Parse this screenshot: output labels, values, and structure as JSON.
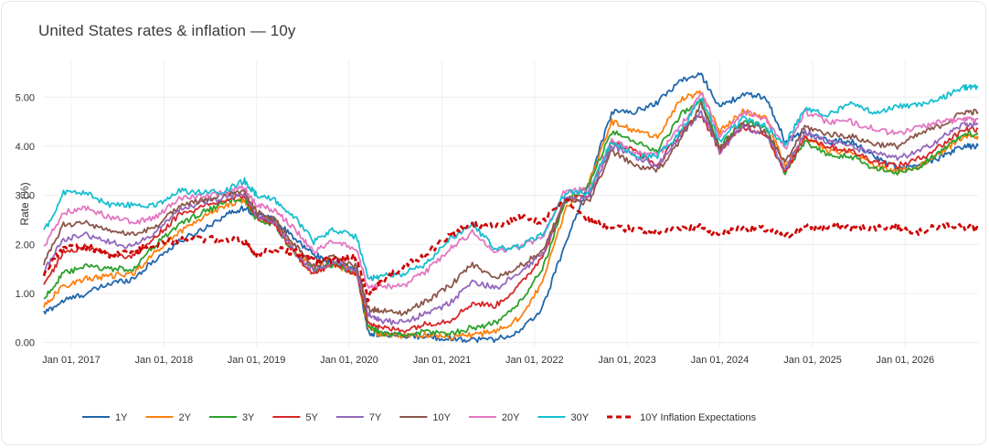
{
  "page": {
    "title": "United States rates & inflation — 10y"
  },
  "chart_data": {
    "type": "line",
    "title": "United States rates & inflation — 10y",
    "xlabel": "",
    "ylabel": "Rate (%)",
    "ylim": [
      -0.1,
      5.75
    ],
    "yticks": [
      "0.00",
      "1.00",
      "2.00",
      "3.00",
      "4.00",
      "5.00"
    ],
    "xlim": [
      "2016-09-15",
      "2026-10-15"
    ],
    "xticks": [
      "Jan 01, 2017",
      "Jan 01, 2018",
      "Jan 01, 2019",
      "Jan 01, 2020",
      "Jan 01, 2021",
      "Jan 01, 2022",
      "Jan 01, 2023",
      "Jan 01, 2024",
      "Jan 01, 2025",
      "Jan 01, 2026"
    ],
    "grid": true,
    "legend_position": "bottom",
    "dates": [
      "2016-09-15",
      "2016-12-01",
      "2017-03-01",
      "2017-06-01",
      "2017-09-01",
      "2017-12-01",
      "2018-03-01",
      "2018-06-01",
      "2018-09-01",
      "2018-11-15",
      "2019-01-01",
      "2019-03-15",
      "2019-06-01",
      "2019-08-15",
      "2019-11-01",
      "2020-02-01",
      "2020-03-15",
      "2020-05-01",
      "2020-08-01",
      "2020-11-01",
      "2021-02-01",
      "2021-05-01",
      "2021-08-01",
      "2021-11-01",
      "2022-02-01",
      "2022-05-01",
      "2022-08-01",
      "2022-11-01",
      "2023-02-01",
      "2023-05-01",
      "2023-08-01",
      "2023-10-20",
      "2024-01-01",
      "2024-04-01",
      "2024-07-01",
      "2024-09-15",
      "2024-12-01",
      "2025-03-01",
      "2025-06-01",
      "2025-09-01",
      "2025-12-01",
      "2026-03-01",
      "2026-06-01",
      "2026-08-20",
      "2026-10-15"
    ],
    "series": [
      {
        "name": "1Y",
        "color": "#2166ac",
        "values": [
          0.6,
          0.85,
          1.0,
          1.2,
          1.3,
          1.7,
          2.05,
          2.3,
          2.6,
          2.75,
          2.6,
          2.5,
          2.1,
          1.8,
          1.6,
          1.5,
          0.2,
          0.17,
          0.13,
          0.12,
          0.08,
          0.06,
          0.07,
          0.2,
          0.7,
          2.0,
          3.2,
          4.7,
          4.7,
          4.9,
          5.35,
          5.45,
          4.8,
          5.05,
          5.0,
          4.1,
          4.3,
          4.1,
          4.1,
          3.8,
          3.55,
          3.6,
          3.8,
          4.0,
          4.0
        ]
      },
      {
        "name": "2Y",
        "color": "#ff7f0e",
        "values": [
          0.75,
          1.15,
          1.3,
          1.35,
          1.4,
          1.85,
          2.25,
          2.55,
          2.8,
          2.9,
          2.55,
          2.45,
          1.85,
          1.55,
          1.6,
          1.4,
          0.3,
          0.18,
          0.14,
          0.16,
          0.12,
          0.16,
          0.21,
          0.5,
          1.2,
          2.7,
          3.25,
          4.5,
          4.3,
          4.2,
          4.95,
          5.1,
          4.3,
          4.7,
          4.6,
          3.6,
          4.2,
          3.9,
          3.9,
          3.6,
          3.5,
          3.6,
          3.9,
          4.2,
          4.2
        ]
      },
      {
        "name": "3Y",
        "color": "#2ca02c",
        "values": [
          0.9,
          1.4,
          1.55,
          1.5,
          1.5,
          2.0,
          2.4,
          2.65,
          2.85,
          2.95,
          2.5,
          2.4,
          1.8,
          1.45,
          1.6,
          1.4,
          0.35,
          0.2,
          0.15,
          0.22,
          0.18,
          0.3,
          0.4,
          0.8,
          1.5,
          2.85,
          3.2,
          4.3,
          4.1,
          3.9,
          4.65,
          4.9,
          4.0,
          4.5,
          4.4,
          3.45,
          4.1,
          3.8,
          3.8,
          3.55,
          3.45,
          3.6,
          3.95,
          4.25,
          4.25
        ]
      },
      {
        "name": "5Y",
        "color": "#d62728",
        "values": [
          1.15,
          1.85,
          1.95,
          1.8,
          1.75,
          2.15,
          2.6,
          2.75,
          2.9,
          3.0,
          2.55,
          2.4,
          1.8,
          1.4,
          1.6,
          1.4,
          0.45,
          0.3,
          0.25,
          0.38,
          0.45,
          0.8,
          0.75,
          1.15,
          1.75,
          2.9,
          3.0,
          4.1,
          3.9,
          3.6,
          4.3,
          4.65,
          3.9,
          4.4,
          4.25,
          3.45,
          4.2,
          4.0,
          3.9,
          3.7,
          3.6,
          3.75,
          4.05,
          4.35,
          4.35
        ]
      },
      {
        "name": "7Y",
        "color": "#9467bd",
        "values": [
          1.45,
          2.1,
          2.2,
          2.05,
          1.95,
          2.25,
          2.7,
          2.85,
          2.95,
          3.05,
          2.6,
          2.45,
          1.85,
          1.45,
          1.65,
          1.45,
          0.6,
          0.45,
          0.4,
          0.6,
          0.8,
          1.25,
          1.1,
          1.4,
          1.8,
          2.9,
          2.95,
          4.0,
          3.8,
          3.6,
          4.25,
          4.7,
          3.9,
          4.4,
          4.25,
          3.5,
          4.3,
          4.1,
          4.0,
          3.85,
          3.75,
          3.9,
          4.2,
          4.45,
          4.45
        ]
      },
      {
        "name": "10Y",
        "color": "#8c564b",
        "values": [
          1.6,
          2.4,
          2.45,
          2.25,
          2.2,
          2.35,
          2.8,
          2.9,
          3.0,
          3.1,
          2.65,
          2.5,
          2.0,
          1.55,
          1.75,
          1.55,
          0.7,
          0.65,
          0.6,
          0.85,
          1.15,
          1.6,
          1.3,
          1.55,
          1.85,
          2.9,
          2.85,
          3.9,
          3.6,
          3.5,
          4.15,
          4.85,
          3.95,
          4.5,
          4.3,
          3.65,
          4.4,
          4.25,
          4.2,
          4.05,
          4.0,
          4.25,
          4.45,
          4.7,
          4.7
        ]
      },
      {
        "name": "20Y",
        "color": "#e377c2",
        "values": [
          1.95,
          2.65,
          2.75,
          2.55,
          2.45,
          2.55,
          2.95,
          3.0,
          3.05,
          3.15,
          2.8,
          2.7,
          2.3,
          1.85,
          2.05,
          1.9,
          1.1,
          1.15,
          1.15,
          1.45,
          1.9,
          2.25,
          1.85,
          1.95,
          2.15,
          3.1,
          3.1,
          4.1,
          3.9,
          3.8,
          4.4,
          5.1,
          4.2,
          4.7,
          4.55,
          3.95,
          4.7,
          4.5,
          4.5,
          4.35,
          4.25,
          4.4,
          4.5,
          4.55,
          4.55
        ]
      },
      {
        "name": "30Y",
        "color": "#17becf",
        "values": [
          2.25,
          3.05,
          3.05,
          2.8,
          2.8,
          2.8,
          3.1,
          3.05,
          3.1,
          3.3,
          3.0,
          2.9,
          2.55,
          2.05,
          2.3,
          2.15,
          1.3,
          1.35,
          1.4,
          1.6,
          2.1,
          2.4,
          1.9,
          1.95,
          2.2,
          3.05,
          3.05,
          4.1,
          3.8,
          3.8,
          4.3,
          5.0,
          4.1,
          4.55,
          4.4,
          4.05,
          4.75,
          4.65,
          4.85,
          4.7,
          4.8,
          4.85,
          5.0,
          5.2,
          5.2
        ]
      },
      {
        "name": "10Y Inflation Expectations",
        "color": "#cc0000",
        "dashed": true,
        "values": [
          1.4,
          1.95,
          1.95,
          1.8,
          1.85,
          2.0,
          2.1,
          2.1,
          2.1,
          2.05,
          1.8,
          1.9,
          1.85,
          1.65,
          1.7,
          1.75,
          0.9,
          1.2,
          1.55,
          1.8,
          2.2,
          2.4,
          2.35,
          2.55,
          2.45,
          2.9,
          2.5,
          2.35,
          2.3,
          2.25,
          2.35,
          2.35,
          2.2,
          2.35,
          2.3,
          2.15,
          2.35,
          2.35,
          2.35,
          2.35,
          2.35,
          2.25,
          2.4,
          2.35,
          2.3
        ]
      }
    ]
  }
}
